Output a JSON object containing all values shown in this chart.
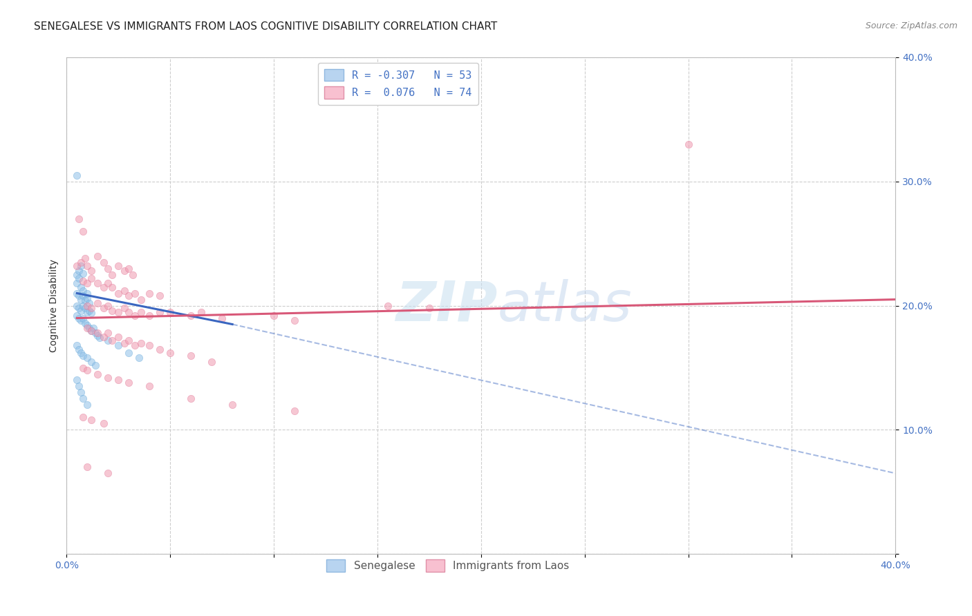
{
  "title": "SENEGALESE VS IMMIGRANTS FROM LAOS COGNITIVE DISABILITY CORRELATION CHART",
  "source": "Source: ZipAtlas.com",
  "ylabel": "Cognitive Disability",
  "xlim": [
    0.0,
    0.4
  ],
  "ylim": [
    0.0,
    0.4
  ],
  "background_color": "#ffffff",
  "grid_color": "#c8c8c8",
  "watermark": "ZIPatlas",
  "blue_scatter": [
    [
      0.005,
      0.305
    ],
    [
      0.005,
      0.225
    ],
    [
      0.006,
      0.228
    ],
    [
      0.007,
      0.232
    ],
    [
      0.008,
      0.226
    ],
    [
      0.005,
      0.218
    ],
    [
      0.006,
      0.222
    ],
    [
      0.007,
      0.215
    ],
    [
      0.008,
      0.212
    ],
    [
      0.005,
      0.21
    ],
    [
      0.006,
      0.208
    ],
    [
      0.007,
      0.205
    ],
    [
      0.008,
      0.208
    ],
    [
      0.009,
      0.204
    ],
    [
      0.01,
      0.206
    ],
    [
      0.011,
      0.202
    ],
    [
      0.01,
      0.21
    ],
    [
      0.005,
      0.2
    ],
    [
      0.006,
      0.198
    ],
    [
      0.007,
      0.196
    ],
    [
      0.008,
      0.2
    ],
    [
      0.009,
      0.198
    ],
    [
      0.01,
      0.195
    ],
    [
      0.011,
      0.196
    ],
    [
      0.012,
      0.194
    ],
    [
      0.005,
      0.192
    ],
    [
      0.006,
      0.19
    ],
    [
      0.007,
      0.188
    ],
    [
      0.008,
      0.19
    ],
    [
      0.009,
      0.186
    ],
    [
      0.01,
      0.184
    ],
    [
      0.011,
      0.182
    ],
    [
      0.012,
      0.18
    ],
    [
      0.013,
      0.182
    ],
    [
      0.014,
      0.178
    ],
    [
      0.015,
      0.176
    ],
    [
      0.016,
      0.174
    ],
    [
      0.005,
      0.168
    ],
    [
      0.006,
      0.165
    ],
    [
      0.007,
      0.162
    ],
    [
      0.008,
      0.16
    ],
    [
      0.01,
      0.158
    ],
    [
      0.012,
      0.155
    ],
    [
      0.014,
      0.152
    ],
    [
      0.02,
      0.172
    ],
    [
      0.025,
      0.168
    ],
    [
      0.03,
      0.162
    ],
    [
      0.035,
      0.158
    ],
    [
      0.005,
      0.14
    ],
    [
      0.006,
      0.135
    ],
    [
      0.007,
      0.13
    ],
    [
      0.008,
      0.125
    ],
    [
      0.01,
      0.12
    ]
  ],
  "pink_scatter": [
    [
      0.006,
      0.27
    ],
    [
      0.008,
      0.26
    ],
    [
      0.005,
      0.232
    ],
    [
      0.007,
      0.235
    ],
    [
      0.009,
      0.238
    ],
    [
      0.01,
      0.232
    ],
    [
      0.012,
      0.228
    ],
    [
      0.015,
      0.24
    ],
    [
      0.018,
      0.235
    ],
    [
      0.02,
      0.23
    ],
    [
      0.022,
      0.225
    ],
    [
      0.025,
      0.232
    ],
    [
      0.028,
      0.228
    ],
    [
      0.03,
      0.23
    ],
    [
      0.032,
      0.225
    ],
    [
      0.008,
      0.22
    ],
    [
      0.01,
      0.218
    ],
    [
      0.012,
      0.222
    ],
    [
      0.015,
      0.218
    ],
    [
      0.018,
      0.215
    ],
    [
      0.02,
      0.218
    ],
    [
      0.022,
      0.215
    ],
    [
      0.025,
      0.21
    ],
    [
      0.028,
      0.212
    ],
    [
      0.03,
      0.208
    ],
    [
      0.033,
      0.21
    ],
    [
      0.036,
      0.205
    ],
    [
      0.04,
      0.21
    ],
    [
      0.045,
      0.208
    ],
    [
      0.01,
      0.2
    ],
    [
      0.012,
      0.198
    ],
    [
      0.015,
      0.202
    ],
    [
      0.018,
      0.198
    ],
    [
      0.02,
      0.2
    ],
    [
      0.022,
      0.196
    ],
    [
      0.025,
      0.195
    ],
    [
      0.028,
      0.198
    ],
    [
      0.03,
      0.195
    ],
    [
      0.033,
      0.192
    ],
    [
      0.036,
      0.195
    ],
    [
      0.04,
      0.192
    ],
    [
      0.045,
      0.195
    ],
    [
      0.05,
      0.195
    ],
    [
      0.06,
      0.192
    ],
    [
      0.065,
      0.195
    ],
    [
      0.075,
      0.19
    ],
    [
      0.1,
      0.192
    ],
    [
      0.11,
      0.188
    ],
    [
      0.155,
      0.2
    ],
    [
      0.175,
      0.198
    ],
    [
      0.01,
      0.182
    ],
    [
      0.012,
      0.18
    ],
    [
      0.015,
      0.178
    ],
    [
      0.018,
      0.175
    ],
    [
      0.02,
      0.178
    ],
    [
      0.022,
      0.172
    ],
    [
      0.025,
      0.175
    ],
    [
      0.028,
      0.17
    ],
    [
      0.03,
      0.172
    ],
    [
      0.033,
      0.168
    ],
    [
      0.036,
      0.17
    ],
    [
      0.04,
      0.168
    ],
    [
      0.045,
      0.165
    ],
    [
      0.05,
      0.162
    ],
    [
      0.06,
      0.16
    ],
    [
      0.07,
      0.155
    ],
    [
      0.008,
      0.15
    ],
    [
      0.01,
      0.148
    ],
    [
      0.015,
      0.145
    ],
    [
      0.02,
      0.142
    ],
    [
      0.025,
      0.14
    ],
    [
      0.03,
      0.138
    ],
    [
      0.04,
      0.135
    ],
    [
      0.06,
      0.125
    ],
    [
      0.08,
      0.12
    ],
    [
      0.11,
      0.115
    ],
    [
      0.008,
      0.11
    ],
    [
      0.012,
      0.108
    ],
    [
      0.018,
      0.105
    ],
    [
      0.01,
      0.07
    ],
    [
      0.02,
      0.065
    ],
    [
      0.3,
      0.33
    ]
  ],
  "blue_line_solid": {
    "x0": 0.005,
    "y0": 0.21,
    "x1": 0.08,
    "y1": 0.185
  },
  "blue_line_dashed": {
    "x0": 0.08,
    "y0": 0.185,
    "x1": 0.4,
    "y1": 0.065
  },
  "pink_line": {
    "x0": 0.005,
    "y0": 0.19,
    "x1": 0.4,
    "y1": 0.205
  },
  "scatter_size": 55,
  "scatter_alpha": 0.55,
  "blue_color": "#8ec0e8",
  "blue_edge_color": "#6aaad8",
  "pink_color": "#f09ab0",
  "pink_edge_color": "#e07898",
  "blue_line_color": "#3a66c0",
  "pink_line_color": "#d85878",
  "title_fontsize": 11,
  "axis_label_fontsize": 10,
  "tick_fontsize": 10,
  "legend_fontsize": 11
}
